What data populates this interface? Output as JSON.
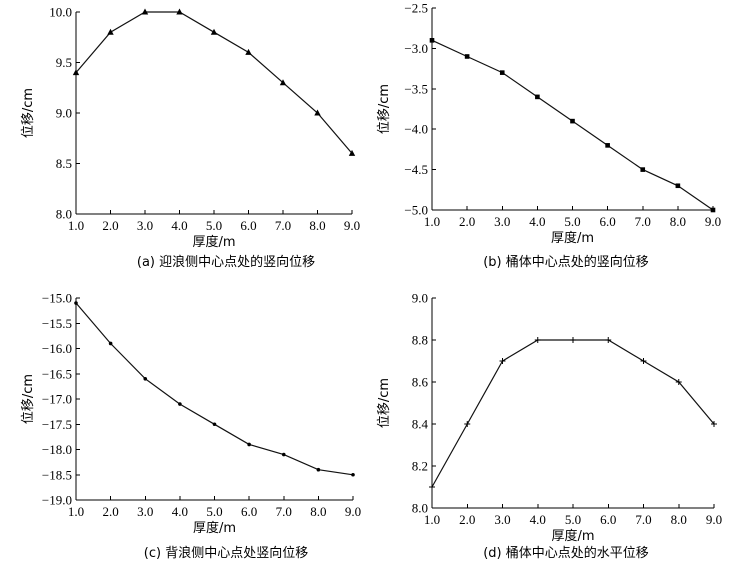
{
  "chart_data": [
    {
      "type": "line",
      "caption": "(a) 迎浪侧中心点处的竖向位移",
      "xlabel": "厚度/m",
      "ylabel": "位移/cm",
      "x": [
        1,
        2,
        3,
        4,
        5,
        6,
        7,
        8,
        9
      ],
      "y": [
        9.4,
        9.8,
        10.0,
        10.0,
        9.8,
        9.6,
        9.3,
        9.0,
        8.6
      ],
      "xticks": [
        "1.0",
        "2.0",
        "3.0",
        "4.0",
        "5.0",
        "6.0",
        "7.0",
        "8.0",
        "9.0"
      ],
      "yticks": [
        "8.0",
        "8.5",
        "9.0",
        "9.5",
        "10.0"
      ],
      "xlim": [
        1,
        9
      ],
      "ylim": [
        8.0,
        10.0
      ],
      "marker": "triangle"
    },
    {
      "type": "line",
      "caption": "(b) 桶体中心点处的竖向位移",
      "xlabel": "厚度/m",
      "ylabel": "位移/cm",
      "x": [
        1,
        2,
        3,
        4,
        5,
        6,
        7,
        8,
        9
      ],
      "y": [
        -2.9,
        -3.1,
        -3.3,
        -3.6,
        -3.9,
        -4.2,
        -4.5,
        -4.7,
        -5.0
      ],
      "xticks": [
        "1.0",
        "2.0",
        "3.0",
        "4.0",
        "5.0",
        "6.0",
        "7.0",
        "8.0",
        "9.0"
      ],
      "yticks": [
        "-5.0",
        "-4.5",
        "-4.0",
        "-3.5",
        "-3.0",
        "-2.5"
      ],
      "xlim": [
        1,
        9
      ],
      "ylim": [
        -5.0,
        -2.5
      ],
      "marker": "square"
    },
    {
      "type": "line",
      "caption": "(c) 背浪侧中心点处竖向位移",
      "xlabel": "厚度/m",
      "ylabel": "位移/cm",
      "x": [
        1,
        2,
        3,
        4,
        5,
        6,
        7,
        8,
        9
      ],
      "y": [
        -15.1,
        -15.9,
        -16.6,
        -17.1,
        -17.5,
        -17.9,
        -18.1,
        -18.4,
        -18.5
      ],
      "xticks": [
        "1.0",
        "2.0",
        "3.0",
        "4.0",
        "5.0",
        "6.0",
        "7.0",
        "8.0",
        "9.0"
      ],
      "yticks": [
        "-19.0",
        "-18.5",
        "-18.0",
        "-17.5",
        "-17.0",
        "-16.5",
        "-16.0",
        "-15.5",
        "-15.0"
      ],
      "xlim": [
        1,
        9
      ],
      "ylim": [
        -19.0,
        -15.0
      ],
      "marker": "dot"
    },
    {
      "type": "line",
      "caption": "(d) 桶体中心点处的水平位移",
      "xlabel": "厚度/m",
      "ylabel": "位移/cm",
      "x": [
        1,
        2,
        3,
        4,
        5,
        6,
        7,
        8,
        9
      ],
      "y": [
        8.1,
        8.4,
        8.7,
        8.8,
        8.8,
        8.8,
        8.7,
        8.6,
        8.4
      ],
      "xticks": [
        "1.0",
        "2.0",
        "3.0",
        "4.0",
        "5.0",
        "6.0",
        "7.0",
        "8.0",
        "9.0"
      ],
      "yticks": [
        "8.0",
        "8.2",
        "8.4",
        "8.6",
        "8.8",
        "9.0"
      ],
      "xlim": [
        1,
        9
      ],
      "ylim": [
        8.0,
        9.0
      ],
      "marker": "plus"
    }
  ]
}
